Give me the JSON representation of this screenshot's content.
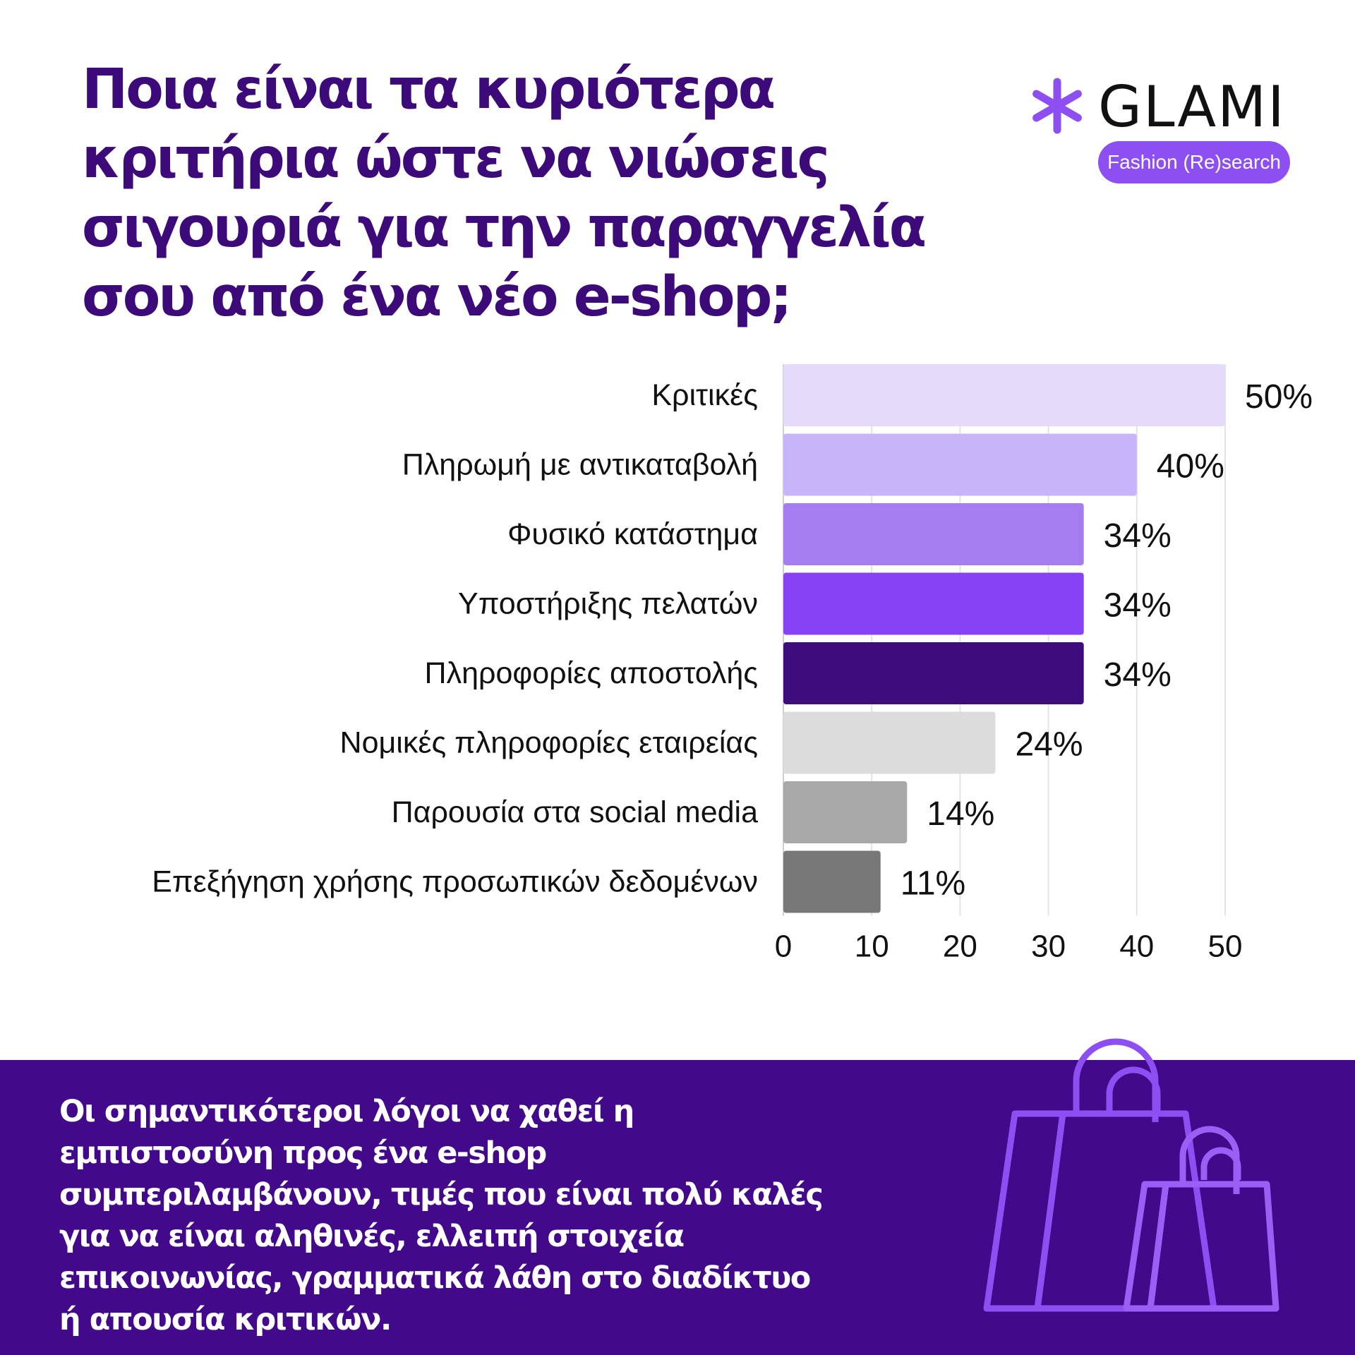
{
  "title_lines": [
    "Ποια είναι τα κυριότερα",
    "κριτήρια ώστε να νιώσεις",
    "σιγουριά για την παραγγελία",
    "σου από ένα νέο e-shop;"
  ],
  "logo": {
    "icon": "asterisk-icon",
    "name": "GLAMI",
    "badge": "Fashion (Re)search",
    "accent_color": "#8d4ff2"
  },
  "chart_data": {
    "type": "bar",
    "orientation": "horizontal",
    "title": "",
    "xlabel": "",
    "ylabel": "",
    "xlim": [
      0,
      50
    ],
    "ticks": [
      0,
      10,
      20,
      30,
      40,
      50
    ],
    "grid": true,
    "legend": "none",
    "categories": [
      "Κριτικές",
      "Πληρωμή με αντικαταβολή",
      "Φυσικό κατάστημα",
      "Υποστήριξης πελατών",
      "Πληροφορίες αποστολής",
      "Νομικές πληροφορίες εταιρείας",
      "Παρουσία στα social media",
      "Επεξήγηση χρήσης προσωπικών δεδομένων"
    ],
    "values": [
      50,
      40,
      34,
      34,
      34,
      24,
      14,
      11
    ],
    "value_labels": [
      "50%",
      "40%",
      "34%",
      "34%",
      "34%",
      "24%",
      "14%",
      "11%"
    ],
    "colors": [
      "#e4dbfb",
      "#c8b4f8",
      "#a67df0",
      "#8842f5",
      "#3f0c7c",
      "#dcdcdc",
      "#a8a8a8",
      "#787878"
    ]
  },
  "footer": {
    "lines": [
      "Οι σημαντικότεροι λόγοι να χαθεί η",
      "εμπιστοσύνη προς ένα e-shop",
      "συμπεριλαμβάνουν, τιμές που είναι πολύ καλές",
      "για να είναι αληθινές, ελλειπή στοιχεία",
      "επικοινωνίας,  γραμματικά λάθη στο διαδίκτυο",
      "ή απουσία κριτικών."
    ],
    "background": "#420a8a",
    "illustration": "shopping-bags-icon"
  }
}
